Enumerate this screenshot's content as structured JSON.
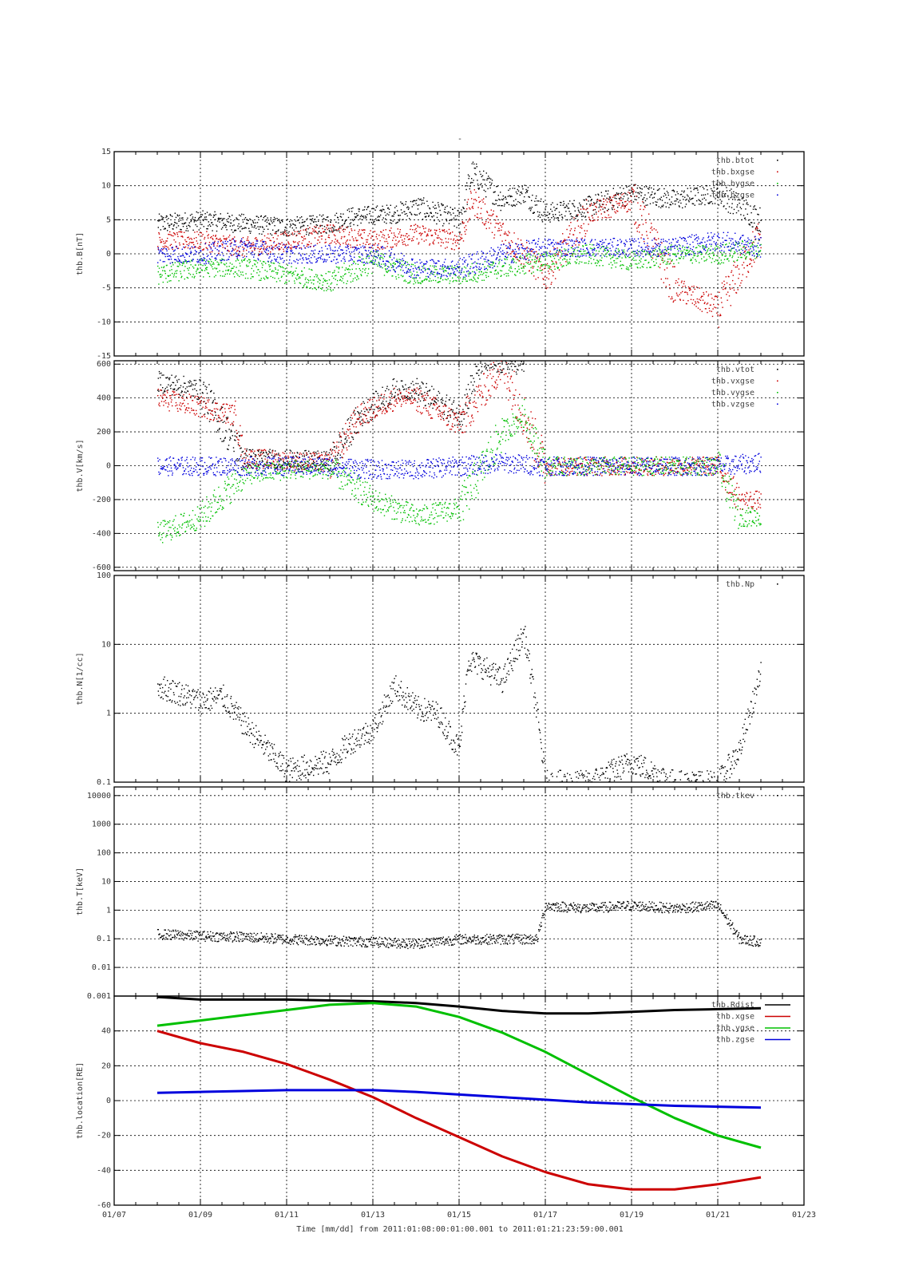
{
  "title": "-",
  "xaxis": {
    "label": "Time [mm/dd]  from 2011:01:08:00:01:00.001  to  2011:01:21:23:59:00.001",
    "ticks": [
      "01/07",
      "01/09",
      "01/11",
      "01/13",
      "01/15",
      "01/17",
      "01/19",
      "01/21",
      "01/23"
    ],
    "range_days": [
      "2011-01-07",
      "2011-01-23"
    ],
    "grid": true
  },
  "colors": {
    "black": "#000000",
    "red": "#cc0000",
    "green": "#00c000",
    "blue": "#0000dd"
  },
  "chart_data": [
    {
      "type": "scatter",
      "ylabel": "thb.B[nT]",
      "ylim": [
        -15,
        15
      ],
      "yscale": "linear",
      "yticks": [
        -15,
        -10,
        -5,
        0,
        5,
        10,
        15
      ],
      "legend_position": "top-right",
      "series": [
        {
          "name": "thb.btot",
          "color": "#000000",
          "x": [
            "01/08",
            "01/09",
            "01/10",
            "01/11",
            "01/12",
            "01/12.5",
            "01/13",
            "01/13.5",
            "01/14",
            "01/15",
            "01/15.3",
            "01/16",
            "01/16.5",
            "01/17",
            "01/18",
            "01/19",
            "01/20",
            "01/21",
            "01/22"
          ],
          "y": [
            4.5,
            5,
            4.5,
            4,
            4.5,
            5.5,
            null,
            6,
            7,
            5,
            12,
            8,
            9,
            6,
            7,
            9,
            8,
            9,
            5
          ]
        },
        {
          "name": "thb.bxgse",
          "color": "#cc0000",
          "x": [
            "01/08",
            "01/09",
            "01/10",
            "01/11",
            "01/12",
            "01/13",
            "01/14",
            "01/15",
            "01/15.3",
            "01/16",
            "01/17",
            "01/18",
            "01/19",
            "01/20",
            "01/21",
            "01/22"
          ],
          "y": [
            2,
            2,
            1,
            2,
            3,
            2,
            3,
            2,
            8,
            3,
            -3,
            6,
            8,
            -5,
            -8,
            3
          ]
        },
        {
          "name": "thb.bygse",
          "color": "#00c000",
          "x": [
            "01/08",
            "01/09",
            "01/10",
            "01/11",
            "01/12",
            "01/13",
            "01/14",
            "01/15",
            "01/16",
            "01/17",
            "01/18",
            "01/19",
            "01/20",
            "01/21",
            "01/22"
          ],
          "y": [
            -3,
            -2,
            -2,
            -3,
            -4,
            -1,
            -3,
            -3,
            -2,
            -1,
            0,
            -1,
            0,
            0,
            1
          ]
        },
        {
          "name": "thb.bzgse",
          "color": "#0000dd",
          "x": [
            "01/08",
            "01/09",
            "01/10",
            "01/11",
            "01/12",
            "01/13",
            "01/14",
            "01/15",
            "01/16",
            "01/17",
            "01/18",
            "01/19",
            "01/20",
            "01/21",
            "01/22"
          ],
          "y": [
            0,
            0,
            1,
            0,
            0,
            0,
            -2,
            -2,
            0,
            1,
            1,
            1,
            1,
            2,
            1
          ]
        }
      ]
    },
    {
      "type": "scatter",
      "ylabel": "thb.V[km/s]",
      "ylim": [
        -620,
        620
      ],
      "yscale": "linear",
      "yticks": [
        -600,
        -400,
        -200,
        0,
        200,
        400,
        600
      ],
      "legend_position": "top-right",
      "series": [
        {
          "name": "thb.vtot",
          "color": "#000000",
          "x": [
            "01/08",
            "01/09",
            "01/10",
            "01/11",
            "01/12",
            "01/12.7",
            "01/13.5",
            "01/14",
            "01/15",
            "01/15.5",
            "01/16.5"
          ],
          "y": [
            500,
            450,
            50,
            40,
            30,
            300,
            450,
            450,
            300,
            600,
            600
          ]
        },
        {
          "name": "thb.vxgse",
          "color": "#cc0000",
          "x": [
            "01/08",
            "01/09",
            "01/09.8",
            "01/10",
            "01/11",
            "01/12",
            "01/12.7",
            "01/13.5",
            "01/14",
            "01/15",
            "01/16",
            "01/17",
            "01/18",
            "01/19",
            "01/20",
            "01/21",
            "01/21.5",
            "01/22"
          ],
          "y": [
            400,
            350,
            300,
            50,
            30,
            20,
            300,
            400,
            400,
            250,
            600,
            0,
            0,
            0,
            0,
            0,
            -200,
            -200
          ]
        },
        {
          "name": "thb.vygse",
          "color": "#00c000",
          "x": [
            "01/08",
            "01/09",
            "01/10",
            "01/11",
            "01/12",
            "01/13",
            "01/14",
            "01/15",
            "01/16",
            "01/16.5",
            "01/17",
            "01/18",
            "01/19",
            "01/20",
            "01/21",
            "01/21.5",
            "01/22"
          ],
          "y": [
            -400,
            -300,
            -50,
            -20,
            -20,
            -200,
            -300,
            -250,
            200,
            300,
            0,
            0,
            0,
            0,
            0,
            -300,
            -300
          ]
        },
        {
          "name": "thb.vzgse",
          "color": "#0000dd",
          "x": [
            "01/08",
            "01/09",
            "01/10",
            "01/11",
            "01/12",
            "01/13",
            "01/14",
            "01/15",
            "01/16",
            "01/17",
            "01/18",
            "01/19",
            "01/20",
            "01/21",
            "01/22"
          ],
          "y": [
            0,
            0,
            0,
            0,
            0,
            -20,
            -20,
            0,
            20,
            0,
            0,
            0,
            0,
            0,
            20
          ]
        }
      ]
    },
    {
      "type": "scatter",
      "ylabel": "thb.N[1/cc]",
      "ylim": [
        0.1,
        100
      ],
      "yscale": "log",
      "yticks": [
        0.1,
        1,
        10,
        100
      ],
      "legend_position": "top-right",
      "series": [
        {
          "name": "thb.Np",
          "color": "#000000",
          "x": [
            "01/08",
            "01/08.5",
            "01/09",
            "01/09.5",
            "01/10",
            "01/11",
            "01/12",
            "01/12.5",
            "01/13",
            "01/13.5",
            "01/14",
            "01/14.5",
            "01/15",
            "01/15.2",
            "01/15.5",
            "01/16",
            "01/16.5",
            "01/16.8",
            "01/17",
            "01/18",
            "01/19",
            "01/20",
            "01/21",
            "01/21.5",
            "01/22"
          ],
          "y": [
            2.5,
            2,
            1.5,
            1.8,
            0.7,
            0.15,
            0.2,
            0.4,
            0.6,
            2.5,
            1.2,
            1,
            0.3,
            6,
            5,
            3,
            15,
            1,
            0.1,
            0.1,
            0.2,
            0.1,
            0.1,
            0.3,
            4
          ]
        }
      ]
    },
    {
      "type": "scatter",
      "ylabel": "thb.T[keV]",
      "ylim": [
        0.001,
        20000
      ],
      "yscale": "log",
      "yticks": [
        0.001,
        0.01,
        0.1,
        1,
        10,
        100,
        1000,
        10000
      ],
      "ytick_labels": [
        "0.001",
        "0.01",
        "0.1",
        "1",
        "10",
        "100",
        "1000",
        "10000"
      ],
      "legend_position": "top-right",
      "series": [
        {
          "name": "thb.tkev",
          "color": "#000000",
          "x": [
            "01/08",
            "01/09",
            "01/10",
            "01/11",
            "01/12",
            "01/13",
            "01/14",
            "01/15",
            "01/16",
            "01/16.8",
            "01/17",
            "01/18",
            "01/19",
            "01/20",
            "01/21",
            "01/21.5",
            "01/22"
          ],
          "y": [
            0.15,
            0.13,
            0.12,
            0.1,
            0.09,
            0.08,
            0.07,
            0.1,
            0.1,
            0.1,
            1.5,
            1.2,
            1.5,
            1.2,
            1.5,
            0.1,
            0.08
          ]
        }
      ]
    },
    {
      "type": "line",
      "ylabel": "thb.location[RE]",
      "ylim": [
        -60,
        60
      ],
      "yscale": "linear",
      "yticks": [
        -60,
        -40,
        -20,
        0,
        20,
        40
      ],
      "legend_position": "top-right",
      "series": [
        {
          "name": "thb.Rdist",
          "color": "#000000",
          "x": [
            "01/08",
            "01/09",
            "01/10",
            "01/11",
            "01/12",
            "01/13",
            "01/14",
            "01/15",
            "01/16",
            "01/17",
            "01/18",
            "01/19",
            "01/20",
            "01/21",
            "01/22"
          ],
          "y": [
            59.5,
            58,
            58,
            58,
            57.5,
            57,
            56,
            54,
            51.5,
            50,
            50,
            51,
            52,
            52.5,
            53
          ]
        },
        {
          "name": "thb.xgse",
          "color": "#cc0000",
          "x": [
            "01/08",
            "01/09",
            "01/10",
            "01/11",
            "01/12",
            "01/13",
            "01/14",
            "01/15",
            "01/16",
            "01/17",
            "01/18",
            "01/19",
            "01/20",
            "01/21",
            "01/22"
          ],
          "y": [
            40,
            33,
            28,
            21,
            12,
            2,
            -10,
            -21,
            -32,
            -41,
            -48,
            -51,
            -51,
            -48,
            -44
          ]
        },
        {
          "name": "thb.ygse",
          "color": "#00c000",
          "x": [
            "01/08",
            "01/09",
            "01/10",
            "01/11",
            "01/12",
            "01/13",
            "01/14",
            "01/15",
            "01/16",
            "01/17",
            "01/18",
            "01/19",
            "01/20",
            "01/21",
            "01/22"
          ],
          "y": [
            43,
            46,
            49,
            52,
            55,
            56,
            54,
            48,
            39,
            28,
            15,
            2,
            -10,
            -20,
            -27
          ]
        },
        {
          "name": "thb.zgse",
          "color": "#0000dd",
          "x": [
            "01/08",
            "01/09",
            "01/10",
            "01/11",
            "01/12",
            "01/13",
            "01/14",
            "01/15",
            "01/16",
            "01/17",
            "01/18",
            "01/19",
            "01/20",
            "01/21",
            "01/22"
          ],
          "y": [
            4.5,
            5,
            5.5,
            6,
            6,
            6,
            5,
            3.5,
            2,
            0.5,
            -1,
            -2,
            -3,
            -3.5,
            -4
          ]
        }
      ]
    }
  ]
}
